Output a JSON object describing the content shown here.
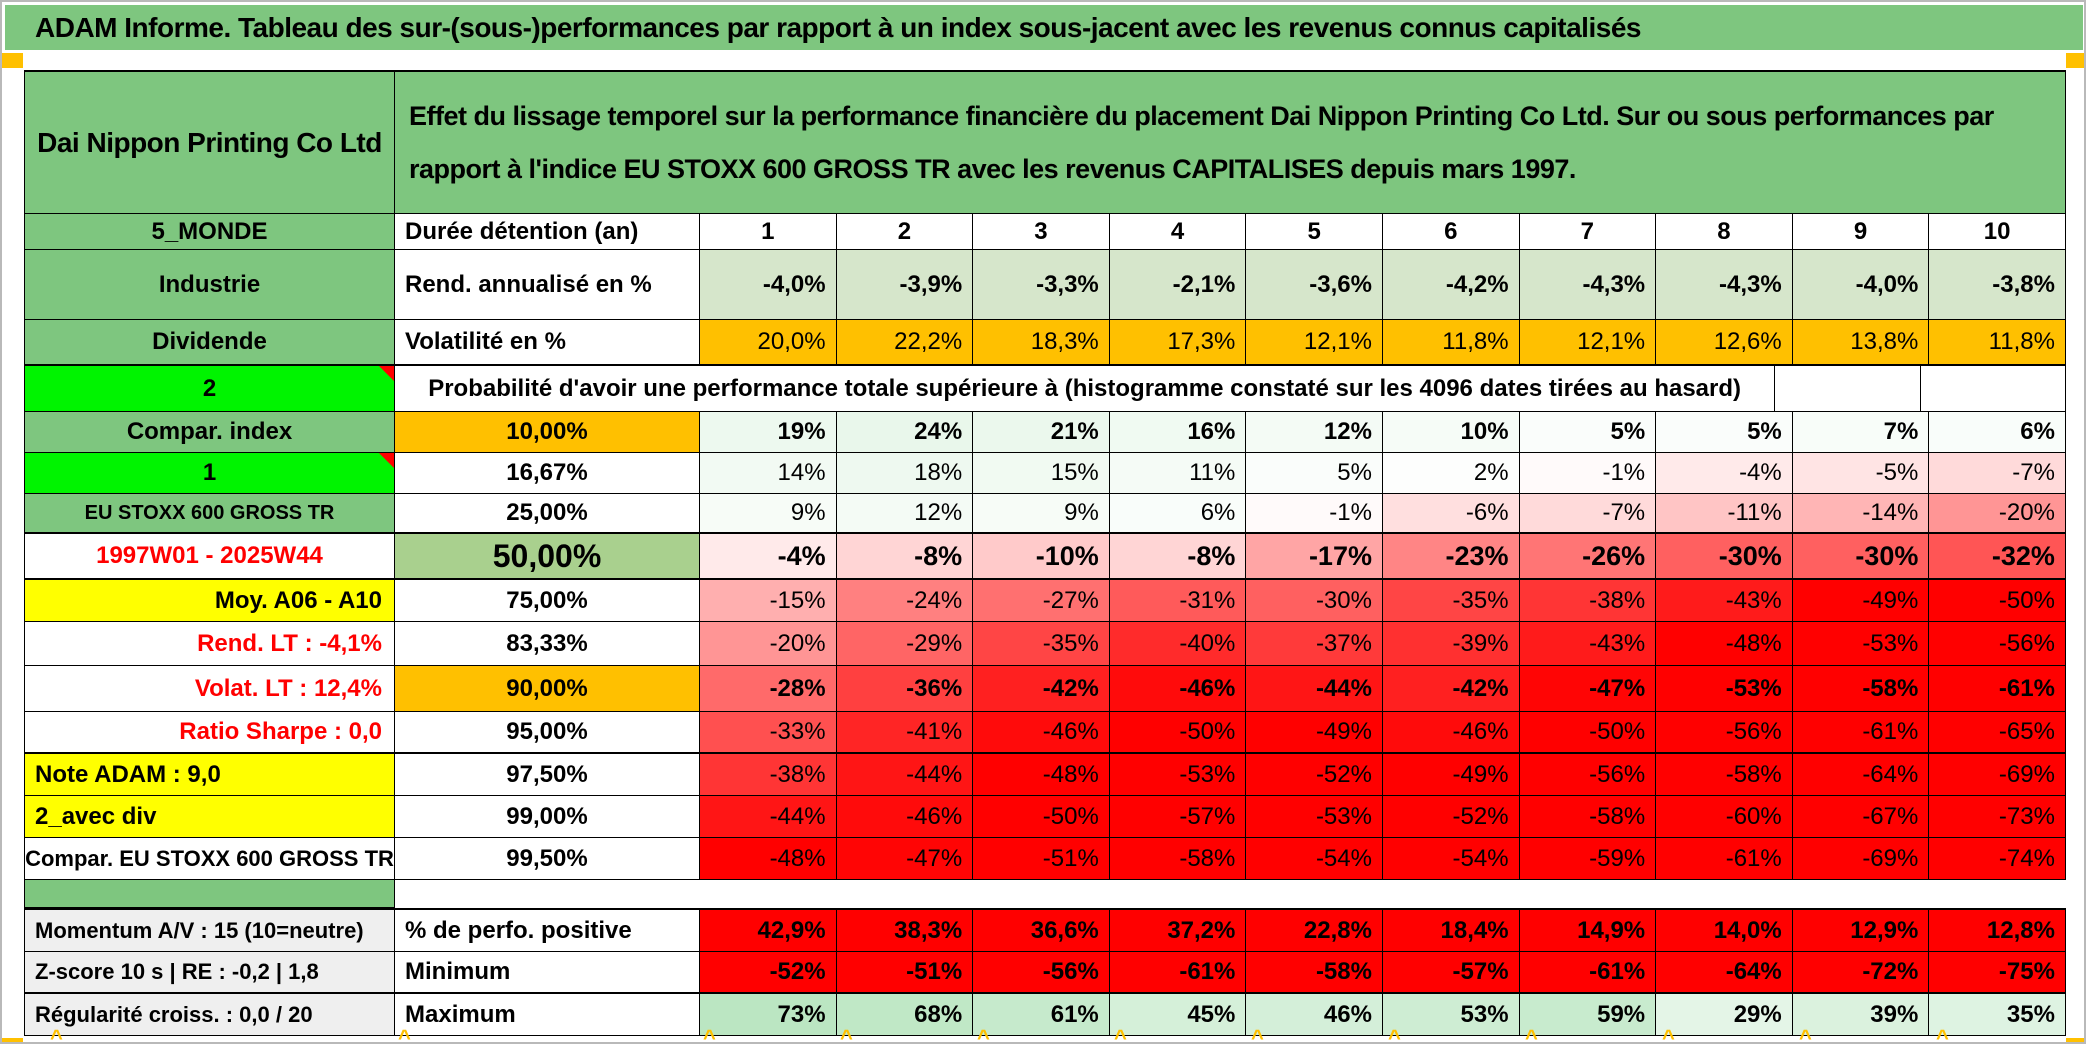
{
  "colors": {
    "band_green": "#7ec67f",
    "bright_green": "#00f400",
    "orange": "#ffc000",
    "yellow": "#ffff00",
    "olive": "#a9d08e",
    "light_green_row": "#d6e6cb",
    "solid_red": "#ff0000",
    "red_text": "#ff0000",
    "gray_label": "#efefef",
    "white": "#ffffff"
  },
  "title": "ADAM Informe. Tableau des sur-(sous-)performances par rapport à un index sous-jacent avec les revenus connus capitalisés",
  "header": {
    "company": "Dai Nippon Printing Co Ltd",
    "description": "Effet du lissage temporel sur la performance financière du placement Dai Nippon Printing Co Ltd. Sur ou sous performances par rapport à l'indice EU STOXX 600 GROSS TR avec les revenus CAPITALISES depuis mars 1997."
  },
  "table": {
    "rows": [
      {
        "id": "duration",
        "left": {
          "t": "5_MONDE",
          "bg": "band_green"
        },
        "mid": {
          "t": "Durée détention (an)"
        },
        "mode": "head",
        "cells": [
          "1",
          "2",
          "3",
          "4",
          "5",
          "6",
          "7",
          "8",
          "9",
          "10"
        ]
      },
      {
        "id": "rend",
        "left": {
          "t": "Industrie",
          "bg": "band_green"
        },
        "mid": {
          "t": "Rend. annualisé en %"
        },
        "mode": "plain",
        "cellBg": "light_green_row",
        "bold": true,
        "cells": [
          "-4,0%",
          "-3,9%",
          "-3,3%",
          "-2,1%",
          "-3,6%",
          "-4,2%",
          "-4,3%",
          "-4,3%",
          "-4,0%",
          "-3,8%"
        ]
      },
      {
        "id": "vol",
        "left": {
          "t": "Dividende",
          "bg": "band_green"
        },
        "mid": {
          "t": "Volatilité en %"
        },
        "mode": "plain",
        "cellBg": "orange",
        "thickBottom": true,
        "cells": [
          "20,0%",
          "22,2%",
          "18,3%",
          "17,3%",
          "12,1%",
          "11,8%",
          "12,1%",
          "12,6%",
          "13,8%",
          "11,8%"
        ]
      },
      {
        "id": "probhdr",
        "left": {
          "t": "2",
          "bg": "bright_green",
          "marker": true
        },
        "midspan": "Probabilité d'avoir une performance totale supérieure à (histogramme constaté sur les 4096 dates tirées au hasard)",
        "emptyTail": 2
      },
      {
        "id": "p10",
        "left": {
          "t": "Compar. index",
          "bg": "band_green"
        },
        "mid": {
          "t": "10,00%",
          "bg": "orange",
          "bold": true,
          "center": true
        },
        "mode": "heat",
        "bold": true,
        "cells": [
          19,
          24,
          21,
          16,
          12,
          10,
          5,
          5,
          7,
          6
        ]
      },
      {
        "id": "p16",
        "left": {
          "t": "1",
          "bg": "bright_green",
          "marker": true
        },
        "mid": {
          "t": "16,67%",
          "center": true
        },
        "mode": "heat",
        "cells": [
          14,
          18,
          15,
          11,
          5,
          2,
          -1,
          -4,
          -5,
          -7
        ]
      },
      {
        "id": "p25",
        "left": {
          "t": "EU STOXX 600 GROSS TR",
          "bg": "band_green",
          "size": 20
        },
        "mid": {
          "t": "25,00%",
          "center": true
        },
        "mode": "heat",
        "thickBottom": true,
        "cells": [
          9,
          12,
          9,
          6,
          -1,
          -6,
          -7,
          -11,
          -14,
          -20
        ]
      },
      {
        "id": "p50",
        "left": {
          "t": "1997W01 - 2025W44",
          "color": "red_text"
        },
        "mid": {
          "t": "50,00%",
          "bg": "olive",
          "bold": true,
          "center": true,
          "size": 32
        },
        "mode": "heat",
        "bold": true,
        "big": true,
        "thickBottom": true,
        "cells": [
          -4,
          -8,
          -10,
          -8,
          -17,
          -23,
          -26,
          -30,
          -30,
          -32
        ]
      },
      {
        "id": "p75",
        "left": {
          "t": "Moy. A06 - A10",
          "bg": "yellow",
          "align": "right"
        },
        "mid": {
          "t": "75,00%",
          "center": true
        },
        "mode": "heat",
        "cells": [
          -15,
          -24,
          -27,
          -31,
          -30,
          -35,
          -38,
          -43,
          -49,
          -50
        ]
      },
      {
        "id": "p83",
        "left": {
          "t": "Rend. LT :   -4,1%",
          "color": "red_text",
          "align": "right"
        },
        "mid": {
          "t": "83,33%",
          "center": true
        },
        "mode": "heat",
        "cells": [
          -20,
          -29,
          -35,
          -40,
          -37,
          -39,
          -43,
          -48,
          -53,
          -56
        ]
      },
      {
        "id": "p90",
        "left": {
          "t": "Volat. LT :   12,4%",
          "color": "red_text",
          "align": "right"
        },
        "mid": {
          "t": "90,00%",
          "bg": "orange",
          "bold": true,
          "center": true
        },
        "mode": "heat",
        "bold": true,
        "cells": [
          -28,
          -36,
          -42,
          -46,
          -44,
          -42,
          -47,
          -53,
          -58,
          -61
        ]
      },
      {
        "id": "p95",
        "left": {
          "t": "Ratio Sharpe :   0,0",
          "color": "red_text",
          "align": "right"
        },
        "mid": {
          "t": "95,00%",
          "center": true
        },
        "mode": "heat",
        "thickBottom": true,
        "cells": [
          -33,
          -41,
          -46,
          -50,
          -49,
          -46,
          -50,
          -56,
          -61,
          -65
        ]
      },
      {
        "id": "p97",
        "left": {
          "t": "Note ADAM : 9,0",
          "bg": "yellow",
          "align": "left"
        },
        "mid": {
          "t": "97,50%",
          "center": true
        },
        "mode": "heat",
        "cells": [
          -38,
          -44,
          -48,
          -53,
          -52,
          -49,
          -56,
          -58,
          -64,
          -69
        ]
      },
      {
        "id": "p99",
        "left": {
          "t": "2_avec div",
          "bg": "yellow",
          "align": "left"
        },
        "mid": {
          "t": "99,00%",
          "center": true
        },
        "mode": "heat",
        "cells": [
          -44,
          -46,
          -50,
          -57,
          -53,
          -52,
          -58,
          -60,
          -67,
          -73
        ]
      },
      {
        "id": "p995",
        "left": {
          "t": "Compar. EU STOXX 600 GROSS TR",
          "size": 22
        },
        "mid": {
          "t": "99,50%",
          "center": true
        },
        "mode": "heat",
        "cells": [
          -48,
          -47,
          -51,
          -58,
          -54,
          -54,
          -59,
          -61,
          -69,
          -74
        ]
      },
      {
        "id": "spacer",
        "left": {
          "t": "",
          "bg": "band_green"
        }
      },
      {
        "id": "mom",
        "left": {
          "t": "Momentum A/V : 15 (10=neutre)",
          "bg": "gray_label",
          "align": "left",
          "size": 22
        },
        "mid": {
          "t": "% de perfo. positive"
        },
        "mode": "solidred",
        "bold": true,
        "thickTop": true,
        "cells": [
          "42,9%",
          "38,3%",
          "36,6%",
          "37,2%",
          "22,8%",
          "18,4%",
          "14,9%",
          "14,0%",
          "12,9%",
          "12,8%"
        ]
      },
      {
        "id": "zsc",
        "left": {
          "t": "Z-score 10 s | RE : -0,2 | 1,8",
          "bg": "gray_label",
          "align": "left",
          "size": 22
        },
        "mid": {
          "t": "Minimum"
        },
        "mode": "solidred",
        "bold": true,
        "thickBottom": true,
        "cells": [
          "-52%",
          "-51%",
          "-56%",
          "-61%",
          "-58%",
          "-57%",
          "-61%",
          "-64%",
          "-72%",
          "-75%"
        ]
      },
      {
        "id": "reg",
        "left": {
          "t": "Régularité croiss. : 0,0 / 20",
          "bg": "gray_label",
          "align": "left",
          "size": 22
        },
        "mid": {
          "t": "Maximum"
        },
        "mode": "heat",
        "bold": true,
        "cells": [
          73,
          68,
          61,
          45,
          46,
          53,
          59,
          29,
          39,
          35
        ]
      }
    ]
  },
  "decor": {
    "caret_glyph": "^"
  }
}
